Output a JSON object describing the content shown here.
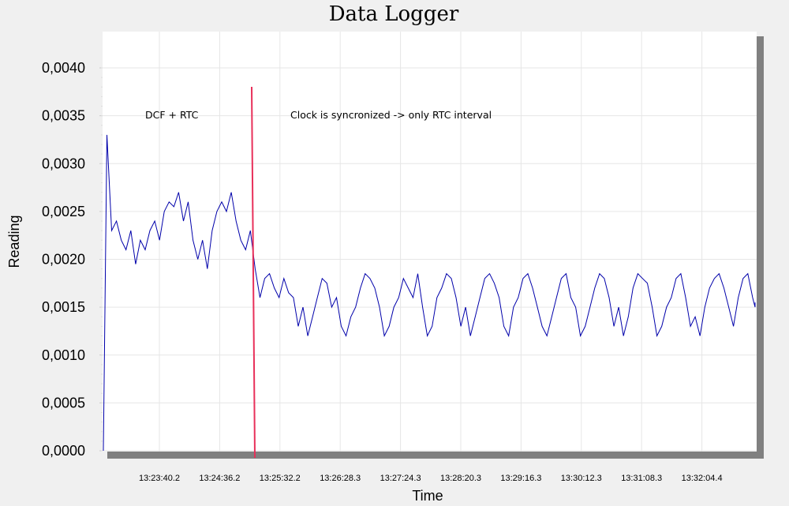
{
  "chart_data": {
    "type": "line",
    "title": "Data Logger",
    "xlabel": "Time",
    "ylabel": "Reading",
    "ylim": [
      0,
      0.0042
    ],
    "y_ticks": [
      "0,0000",
      "0,0005",
      "0,0010",
      "0,0015",
      "0,0020",
      "0,0025",
      "0,0030",
      "0,0035",
      "0,0040"
    ],
    "x_ticks": [
      "13:23:40.2",
      "13:24:36.2",
      "13:25:32.2",
      "13:26:28.3",
      "13:27:24.3",
      "13:28:20.3",
      "13:29:16.3",
      "13:30:12.3",
      "13:31:08.3",
      "13:32:04.4"
    ],
    "grid": true,
    "annotations": [
      {
        "text": "DCF + RTC"
      },
      {
        "text": "Clock is syncronized -> only RTC interval"
      }
    ],
    "colors": {
      "series": "#0000aa",
      "marker": "#e8305a",
      "plot_bg": "#ffffff",
      "frame": "#808080"
    },
    "series": [
      {
        "values": [
          0.0,
          0.0033,
          0.0023,
          0.0024,
          0.0022,
          0.0021,
          0.0023,
          0.00195,
          0.0022,
          0.0021,
          0.0023,
          0.0024,
          0.0022,
          0.0025,
          0.0026,
          0.00255,
          0.0027,
          0.0024,
          0.0026,
          0.0022,
          0.002,
          0.0022,
          0.0019,
          0.0023,
          0.0025,
          0.0026,
          0.0025,
          0.0027,
          0.0024,
          0.0022,
          0.0021,
          0.0023,
          0.0019,
          0.0016,
          0.0018,
          0.00185,
          0.0017,
          0.0016,
          0.0018,
          0.00165,
          0.0016,
          0.0013,
          0.0015,
          0.0012,
          0.0014,
          0.0016,
          0.0018,
          0.00175,
          0.0015,
          0.0016,
          0.0013,
          0.0012,
          0.0014,
          0.0015,
          0.0017,
          0.00185,
          0.0018,
          0.0017,
          0.0015,
          0.0012,
          0.0013,
          0.0015,
          0.0016,
          0.0018,
          0.0017,
          0.0016,
          0.00185,
          0.0015,
          0.0012,
          0.0013,
          0.0016,
          0.0017,
          0.00185,
          0.0018,
          0.0016,
          0.0013,
          0.0015,
          0.0012,
          0.0014,
          0.0016,
          0.0018,
          0.00185,
          0.00175,
          0.0016,
          0.0013,
          0.0012,
          0.0015,
          0.0016,
          0.0018,
          0.00185,
          0.0017,
          0.0015,
          0.0013,
          0.0012,
          0.0014,
          0.0016,
          0.0018,
          0.00185,
          0.0016,
          0.0015,
          0.0012,
          0.0013,
          0.0015,
          0.0017,
          0.00185,
          0.0018,
          0.0016,
          0.0013,
          0.0015,
          0.0012,
          0.0014,
          0.0017,
          0.00185,
          0.0018,
          0.00175,
          0.0015,
          0.0012,
          0.0013,
          0.0015,
          0.0016,
          0.0018,
          0.00185,
          0.0016,
          0.0013,
          0.0014,
          0.0012,
          0.0015,
          0.0017,
          0.0018,
          0.00185,
          0.0017,
          0.0015,
          0.0013,
          0.0016,
          0.0018,
          0.00185,
          0.0016,
          0.0015,
          0.00155
        ],
        "x_range_ticks": [
          -0.95,
          10.0
        ]
      }
    ]
  }
}
